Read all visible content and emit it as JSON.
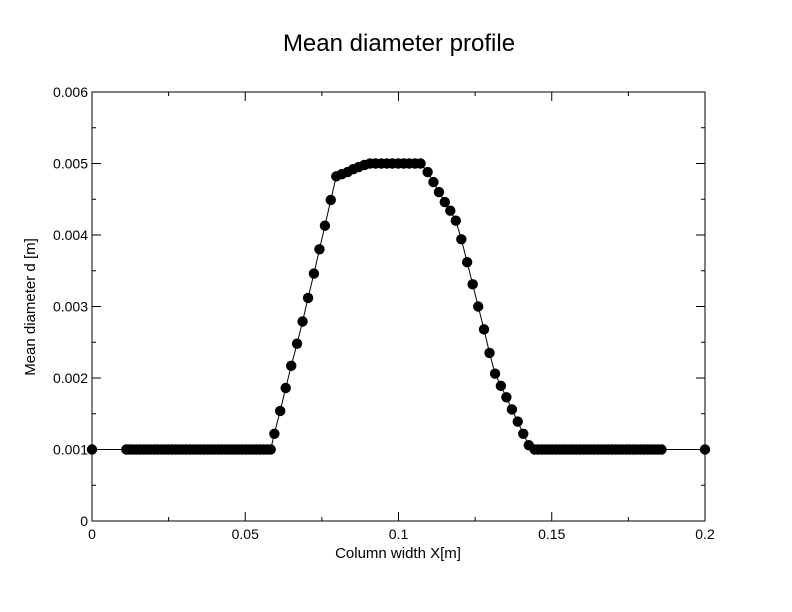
{
  "chart_data": {
    "type": "scatter",
    "title": "Mean diameter profile",
    "xlabel": "Column width X[m]",
    "ylabel": "Mean diameter d [m]",
    "xlim": [
      0,
      0.2
    ],
    "ylim": [
      0,
      0.006
    ],
    "x_ticks": [
      "0",
      "0.05",
      "0.1",
      "0.15",
      "0.2"
    ],
    "y_ticks": [
      "0",
      "0.001",
      "0.002",
      "0.003",
      "0.004",
      "0.005",
      "0.006"
    ],
    "grid": false,
    "legend": "none",
    "marker_color": "#000000",
    "line_color": "#000000",
    "series": [
      {
        "points": [
          [
            0.0,
            0.001
          ],
          [
            0.0112,
            0.001
          ],
          [
            0.0123,
            0.001
          ],
          [
            0.0135,
            0.001
          ],
          [
            0.0146,
            0.001
          ],
          [
            0.0158,
            0.001
          ],
          [
            0.0169,
            0.001
          ],
          [
            0.0181,
            0.001
          ],
          [
            0.0192,
            0.001
          ],
          [
            0.0204,
            0.001
          ],
          [
            0.0215,
            0.001
          ],
          [
            0.0227,
            0.001
          ],
          [
            0.0238,
            0.001
          ],
          [
            0.025,
            0.001
          ],
          [
            0.0261,
            0.001
          ],
          [
            0.0273,
            0.001
          ],
          [
            0.0284,
            0.001
          ],
          [
            0.0296,
            0.001
          ],
          [
            0.0307,
            0.001
          ],
          [
            0.0319,
            0.001
          ],
          [
            0.033,
            0.001
          ],
          [
            0.0342,
            0.001
          ],
          [
            0.0353,
            0.001
          ],
          [
            0.0365,
            0.001
          ],
          [
            0.0376,
            0.001
          ],
          [
            0.0388,
            0.001
          ],
          [
            0.0399,
            0.001
          ],
          [
            0.0411,
            0.001
          ],
          [
            0.0422,
            0.001
          ],
          [
            0.0434,
            0.001
          ],
          [
            0.0445,
            0.001
          ],
          [
            0.0457,
            0.001
          ],
          [
            0.0468,
            0.001
          ],
          [
            0.048,
            0.001
          ],
          [
            0.0491,
            0.001
          ],
          [
            0.0503,
            0.001
          ],
          [
            0.0514,
            0.001
          ],
          [
            0.0526,
            0.001
          ],
          [
            0.0537,
            0.001
          ],
          [
            0.0549,
            0.001
          ],
          [
            0.056,
            0.001
          ],
          [
            0.0572,
            0.001
          ],
          [
            0.0583,
            0.001
          ],
          [
            0.0595,
            0.00122
          ],
          [
            0.0614,
            0.00154
          ],
          [
            0.0632,
            0.00186
          ],
          [
            0.065,
            0.00217
          ],
          [
            0.0669,
            0.00248
          ],
          [
            0.0687,
            0.00279
          ],
          [
            0.0705,
            0.00312
          ],
          [
            0.0724,
            0.00346
          ],
          [
            0.0742,
            0.0038
          ],
          [
            0.076,
            0.00413
          ],
          [
            0.0779,
            0.00449
          ],
          [
            0.0797,
            0.00482
          ],
          [
            0.0815,
            0.00485
          ],
          [
            0.0834,
            0.00488
          ],
          [
            0.0852,
            0.00492
          ],
          [
            0.087,
            0.00495
          ],
          [
            0.0889,
            0.00498
          ],
          [
            0.0907,
            0.005
          ],
          [
            0.0925,
            0.005
          ],
          [
            0.0944,
            0.005
          ],
          [
            0.0962,
            0.005
          ],
          [
            0.098,
            0.005
          ],
          [
            0.0999,
            0.005
          ],
          [
            0.1017,
            0.005
          ],
          [
            0.1035,
            0.005
          ],
          [
            0.1054,
            0.005
          ],
          [
            0.1072,
            0.005
          ],
          [
            0.1095,
            0.00488
          ],
          [
            0.1114,
            0.00474
          ],
          [
            0.1132,
            0.0046
          ],
          [
            0.1151,
            0.00446
          ],
          [
            0.1169,
            0.00434
          ],
          [
            0.1187,
            0.0042
          ],
          [
            0.1205,
            0.00394
          ],
          [
            0.1224,
            0.00362
          ],
          [
            0.1242,
            0.00331
          ],
          [
            0.126,
            0.003
          ],
          [
            0.1279,
            0.00268
          ],
          [
            0.1297,
            0.00235
          ],
          [
            0.1315,
            0.00206
          ],
          [
            0.1334,
            0.00189
          ],
          [
            0.1352,
            0.00173
          ],
          [
            0.137,
            0.00156
          ],
          [
            0.1389,
            0.00139
          ],
          [
            0.1407,
            0.00122
          ],
          [
            0.1425,
            0.00106
          ],
          [
            0.1444,
            0.001
          ],
          [
            0.1455,
            0.001
          ],
          [
            0.1467,
            0.001
          ],
          [
            0.1478,
            0.001
          ],
          [
            0.149,
            0.001
          ],
          [
            0.1501,
            0.001
          ],
          [
            0.1513,
            0.001
          ],
          [
            0.1524,
            0.001
          ],
          [
            0.1536,
            0.001
          ],
          [
            0.1547,
            0.001
          ],
          [
            0.1559,
            0.001
          ],
          [
            0.157,
            0.001
          ],
          [
            0.1582,
            0.001
          ],
          [
            0.1593,
            0.001
          ],
          [
            0.1605,
            0.001
          ],
          [
            0.1616,
            0.001
          ],
          [
            0.1628,
            0.001
          ],
          [
            0.1639,
            0.001
          ],
          [
            0.1651,
            0.001
          ],
          [
            0.1662,
            0.001
          ],
          [
            0.1674,
            0.001
          ],
          [
            0.1685,
            0.001
          ],
          [
            0.1697,
            0.001
          ],
          [
            0.1708,
            0.001
          ],
          [
            0.172,
            0.001
          ],
          [
            0.1731,
            0.001
          ],
          [
            0.1743,
            0.001
          ],
          [
            0.1754,
            0.001
          ],
          [
            0.1766,
            0.001
          ],
          [
            0.1777,
            0.001
          ],
          [
            0.1789,
            0.001
          ],
          [
            0.18,
            0.001
          ],
          [
            0.1812,
            0.001
          ],
          [
            0.1823,
            0.001
          ],
          [
            0.1835,
            0.001
          ],
          [
            0.1846,
            0.001
          ],
          [
            0.1858,
            0.001
          ],
          [
            0.2,
            0.001
          ]
        ]
      }
    ]
  }
}
